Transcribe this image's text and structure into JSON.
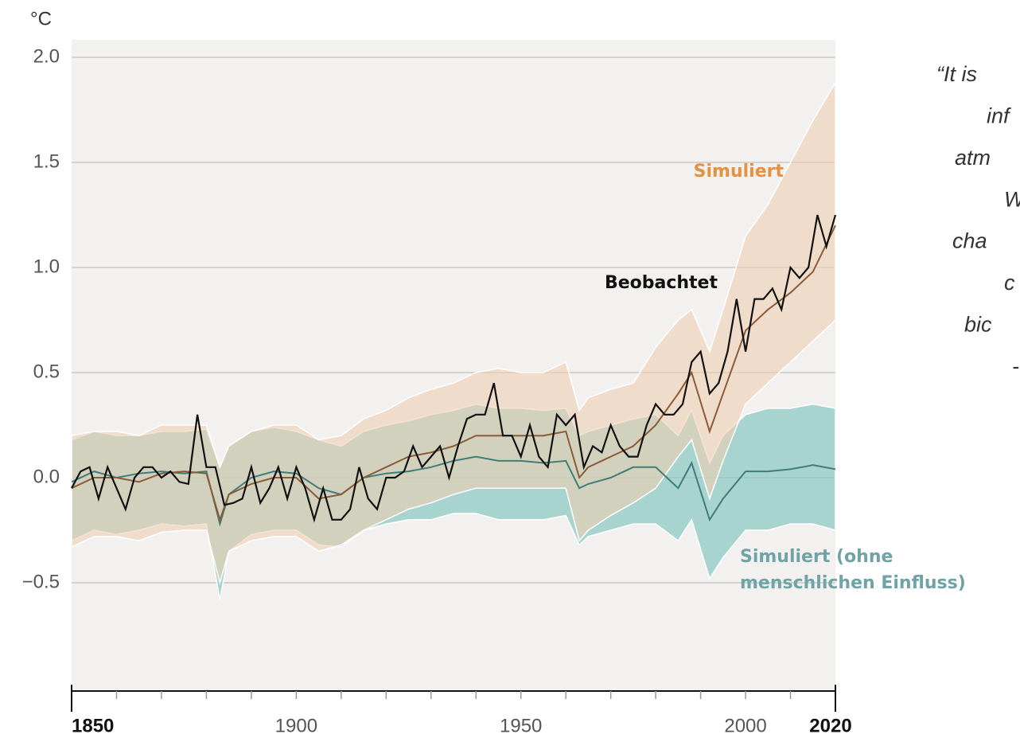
{
  "chart_data": {
    "type": "line",
    "unit": "°C",
    "xlim": [
      1850,
      2020
    ],
    "ylim": [
      -1.0,
      2.0
    ],
    "xticks": [
      1850,
      1900,
      1950,
      2000,
      2020
    ],
    "xminorticks": [
      1860,
      1870,
      1880,
      1890,
      1910,
      1920,
      1930,
      1940,
      1960,
      1970,
      1980,
      1990,
      2010
    ],
    "yticks": [
      {
        "value": -0.5,
        "label": "−0.5"
      },
      {
        "value": 0,
        "label": "0.0"
      },
      0.5,
      {
        "value": 1,
        "label": "1.0"
      },
      1.5,
      {
        "value": 2,
        "label": "2.0"
      }
    ],
    "grid": true,
    "series": [
      {
        "label": [
          "Simuliert (ohne",
          "menschlichen Einfluss)"
        ],
        "color": "#3f7d78",
        "label_color": "#6fa3a6",
        "band_color": "#8fcac4",
        "x": [
          1850,
          1855,
          1860,
          1865,
          1870,
          1875,
          1880,
          1883,
          1885,
          1890,
          1895,
          1900,
          1905,
          1910,
          1915,
          1920,
          1925,
          1930,
          1935,
          1940,
          1945,
          1950,
          1955,
          1960,
          1963,
          1965,
          1970,
          1975,
          1980,
          1985,
          1988,
          1992,
          1995,
          2000,
          2005,
          2010,
          2015,
          2020
        ],
        "values": [
          -0.02,
          0.03,
          0.0,
          0.02,
          0.03,
          0.02,
          0.03,
          -0.22,
          -0.08,
          0.0,
          0.03,
          0.02,
          -0.05,
          -0.08,
          0.0,
          0.02,
          0.03,
          0.05,
          0.08,
          0.1,
          0.08,
          0.08,
          0.07,
          0.08,
          -0.05,
          -0.03,
          0.0,
          0.05,
          0.05,
          -0.05,
          0.07,
          -0.2,
          -0.1,
          0.03,
          0.03,
          0.04,
          0.06,
          0.04
        ],
        "band_lower": [
          -0.3,
          -0.25,
          -0.27,
          -0.25,
          -0.22,
          -0.23,
          -0.22,
          -0.58,
          -0.35,
          -0.27,
          -0.25,
          -0.25,
          -0.32,
          -0.33,
          -0.25,
          -0.22,
          -0.2,
          -0.2,
          -0.17,
          -0.17,
          -0.2,
          -0.2,
          -0.2,
          -0.18,
          -0.32,
          -0.28,
          -0.25,
          -0.22,
          -0.22,
          -0.3,
          -0.2,
          -0.48,
          -0.38,
          -0.25,
          -0.25,
          -0.22,
          -0.22,
          -0.25
        ],
        "band_upper": [
          0.18,
          0.22,
          0.2,
          0.2,
          0.22,
          0.22,
          0.23,
          0.05,
          0.15,
          0.22,
          0.24,
          0.22,
          0.18,
          0.15,
          0.22,
          0.25,
          0.27,
          0.3,
          0.32,
          0.35,
          0.33,
          0.33,
          0.32,
          0.33,
          0.2,
          0.22,
          0.25,
          0.28,
          0.3,
          0.2,
          0.32,
          0.07,
          0.2,
          0.3,
          0.33,
          0.33,
          0.35,
          0.33
        ]
      },
      {
        "label": [
          "Simuliert"
        ],
        "color": "#8b5a36",
        "label_color": "#e5913f",
        "band_color": "#efcfb0",
        "x": [
          1850,
          1855,
          1860,
          1865,
          1870,
          1875,
          1880,
          1883,
          1885,
          1890,
          1895,
          1900,
          1905,
          1910,
          1915,
          1920,
          1925,
          1930,
          1935,
          1940,
          1945,
          1950,
          1955,
          1960,
          1963,
          1965,
          1970,
          1975,
          1980,
          1985,
          1988,
          1992,
          1995,
          2000,
          2005,
          2010,
          2015,
          2020
        ],
        "values": [
          -0.05,
          0.0,
          0.0,
          -0.02,
          0.02,
          0.03,
          0.02,
          -0.2,
          -0.08,
          -0.03,
          0.0,
          0.0,
          -0.1,
          -0.08,
          0.0,
          0.05,
          0.1,
          0.12,
          0.15,
          0.2,
          0.2,
          0.2,
          0.2,
          0.22,
          0.0,
          0.05,
          0.1,
          0.15,
          0.25,
          0.4,
          0.5,
          0.22,
          0.4,
          0.7,
          0.8,
          0.88,
          0.98,
          1.2
        ],
        "band_lower": [
          -0.33,
          -0.28,
          -0.28,
          -0.3,
          -0.26,
          -0.25,
          -0.25,
          -0.5,
          -0.35,
          -0.3,
          -0.28,
          -0.28,
          -0.35,
          -0.32,
          -0.25,
          -0.2,
          -0.15,
          -0.12,
          -0.08,
          -0.05,
          -0.05,
          -0.05,
          -0.05,
          -0.05,
          -0.3,
          -0.25,
          -0.18,
          -0.12,
          -0.05,
          0.1,
          0.18,
          -0.1,
          0.08,
          0.35,
          0.45,
          0.55,
          0.65,
          0.75
        ],
        "band_upper": [
          0.2,
          0.22,
          0.22,
          0.2,
          0.25,
          0.25,
          0.25,
          0.05,
          0.15,
          0.22,
          0.25,
          0.25,
          0.18,
          0.2,
          0.28,
          0.32,
          0.38,
          0.42,
          0.45,
          0.5,
          0.52,
          0.5,
          0.5,
          0.55,
          0.32,
          0.38,
          0.42,
          0.45,
          0.62,
          0.75,
          0.8,
          0.6,
          0.8,
          1.15,
          1.3,
          1.5,
          1.7,
          1.88
        ]
      },
      {
        "label": [
          "Beobachtet"
        ],
        "color": "#111111",
        "label_color": "#111111",
        "x": [
          1850,
          1852,
          1854,
          1856,
          1858,
          1860,
          1862,
          1864,
          1866,
          1868,
          1870,
          1872,
          1874,
          1876,
          1878,
          1880,
          1882,
          1884,
          1886,
          1888,
          1890,
          1892,
          1894,
          1896,
          1898,
          1900,
          1902,
          1904,
          1906,
          1908,
          1910,
          1912,
          1914,
          1916,
          1918,
          1920,
          1922,
          1924,
          1926,
          1928,
          1930,
          1932,
          1934,
          1936,
          1938,
          1940,
          1942,
          1944,
          1946,
          1948,
          1950,
          1952,
          1954,
          1956,
          1958,
          1960,
          1962,
          1964,
          1966,
          1968,
          1970,
          1972,
          1974,
          1976,
          1978,
          1980,
          1982,
          1984,
          1986,
          1988,
          1990,
          1992,
          1994,
          1996,
          1998,
          2000,
          2002,
          2004,
          2006,
          2008,
          2010,
          2012,
          2014,
          2016,
          2018,
          2020
        ],
        "values": [
          -0.05,
          0.03,
          0.05,
          -0.1,
          0.05,
          -0.05,
          -0.15,
          0.0,
          0.05,
          0.05,
          0.0,
          0.03,
          -0.02,
          -0.03,
          0.3,
          0.05,
          0.05,
          -0.13,
          -0.12,
          -0.1,
          0.05,
          -0.12,
          -0.05,
          0.05,
          -0.1,
          0.05,
          -0.05,
          -0.2,
          -0.05,
          -0.2,
          -0.2,
          -0.15,
          0.05,
          -0.1,
          -0.15,
          0.0,
          0.0,
          0.03,
          0.15,
          0.05,
          0.1,
          0.15,
          0.0,
          0.15,
          0.28,
          0.3,
          0.3,
          0.45,
          0.2,
          0.2,
          0.1,
          0.25,
          0.1,
          0.05,
          0.3,
          0.25,
          0.3,
          0.05,
          0.15,
          0.12,
          0.25,
          0.15,
          0.1,
          0.1,
          0.25,
          0.35,
          0.3,
          0.3,
          0.35,
          0.55,
          0.6,
          0.4,
          0.45,
          0.6,
          0.85,
          0.6,
          0.85,
          0.85,
          0.9,
          0.8,
          1.0,
          0.95,
          1.0,
          1.25,
          1.1,
          1.25
        ]
      }
    ],
    "quote_lines": [
      "“It is",
      "inf",
      "atm",
      "W",
      "cha",
      "c",
      "bic",
      "-"
    ]
  }
}
